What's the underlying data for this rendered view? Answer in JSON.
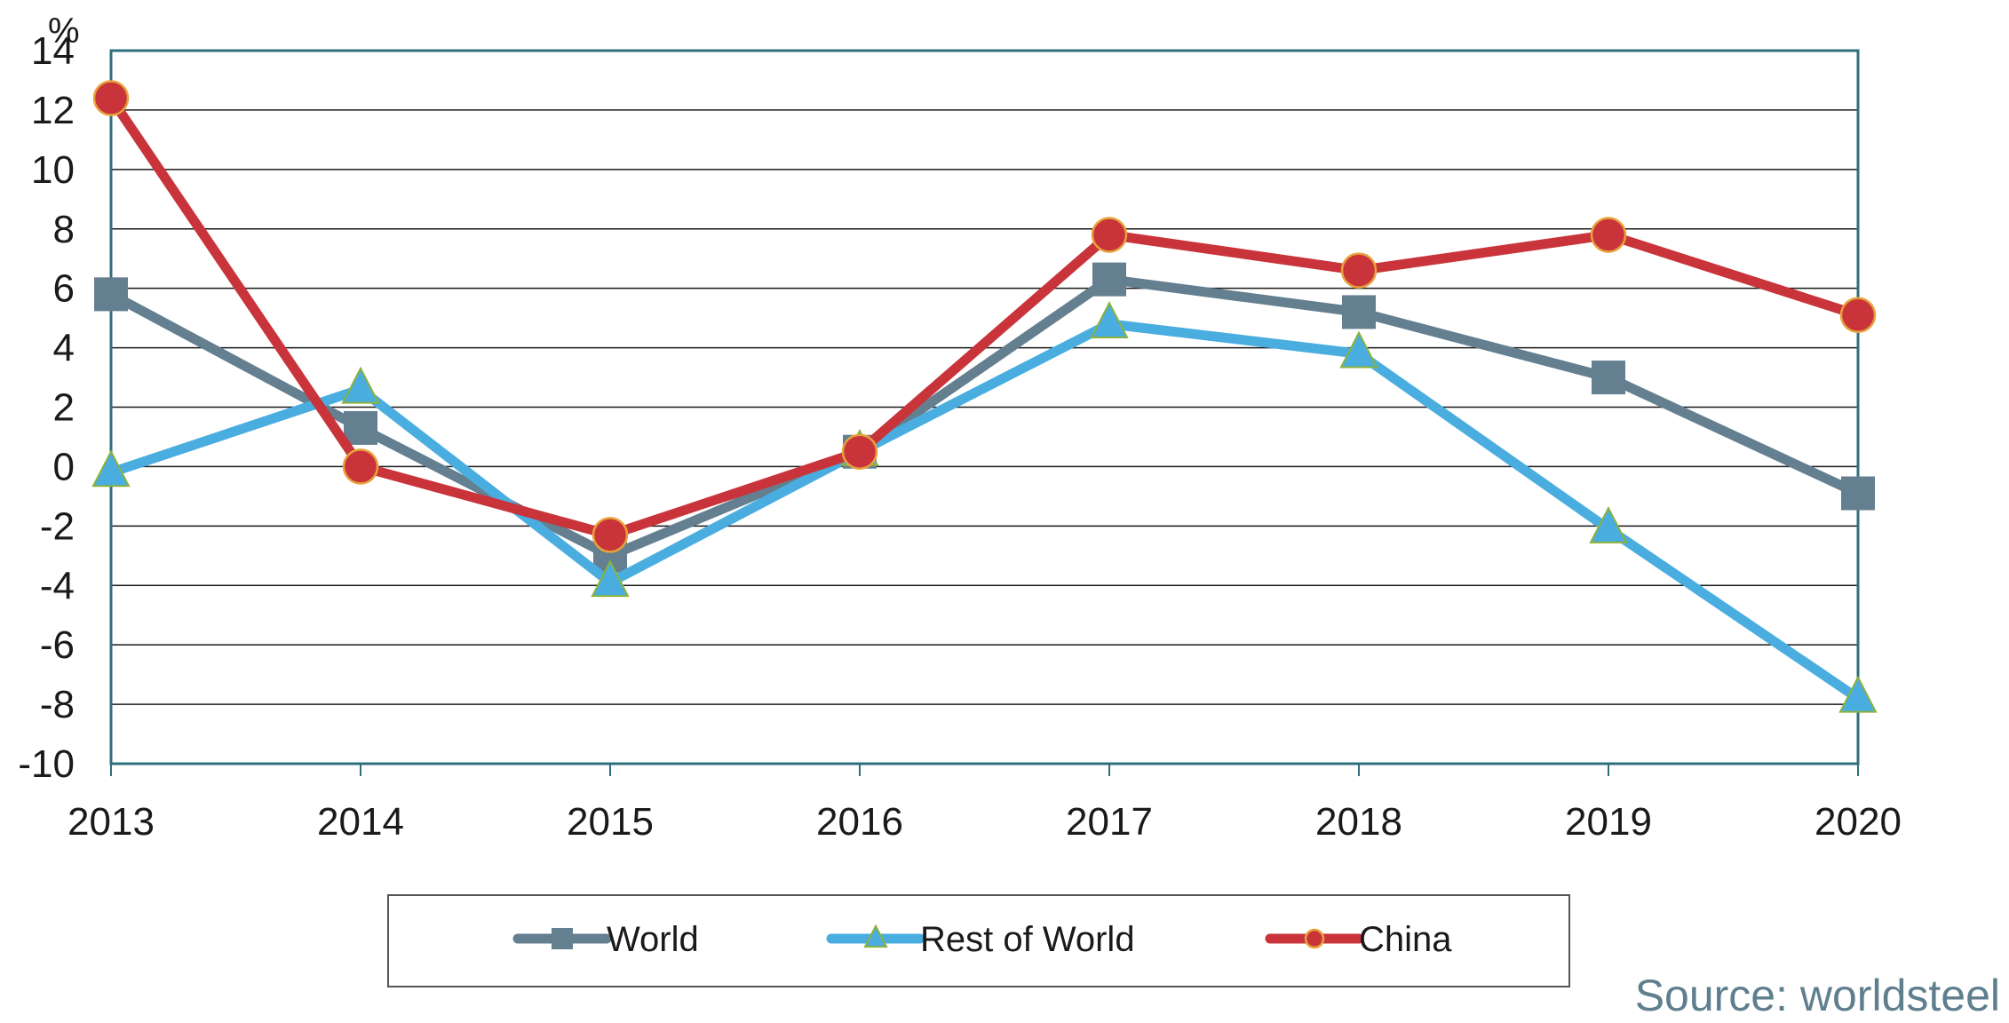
{
  "chart_data": {
    "type": "line",
    "title": "",
    "xlabel": "",
    "ylabel": "%",
    "categories": [
      "2013",
      "2014",
      "2015",
      "2016",
      "2017",
      "2018",
      "2019",
      "2020"
    ],
    "ylim": [
      -10,
      14
    ],
    "yticks": [
      14,
      12,
      10,
      8,
      6,
      4,
      2,
      0,
      -2,
      -4,
      -6,
      -8,
      -10
    ],
    "grid": true,
    "legend": "bottom",
    "series": [
      {
        "name": "World",
        "color": "#647f90",
        "marker": "square",
        "values": [
          5.8,
          1.3,
          -3.0,
          0.5,
          6.3,
          5.2,
          3.0,
          -0.9
        ]
      },
      {
        "name": "Rest of World",
        "color": "#4aade0",
        "marker": "triangle",
        "values": [
          -0.2,
          2.6,
          -3.9,
          0.5,
          4.8,
          3.8,
          -2.1,
          -7.8
        ]
      },
      {
        "name": "China",
        "color": "#c9343a",
        "marker": "circle",
        "values": [
          12.4,
          0.0,
          -2.3,
          0.5,
          7.8,
          6.6,
          7.8,
          5.1
        ]
      }
    ]
  },
  "source": "Source: worldsteel"
}
